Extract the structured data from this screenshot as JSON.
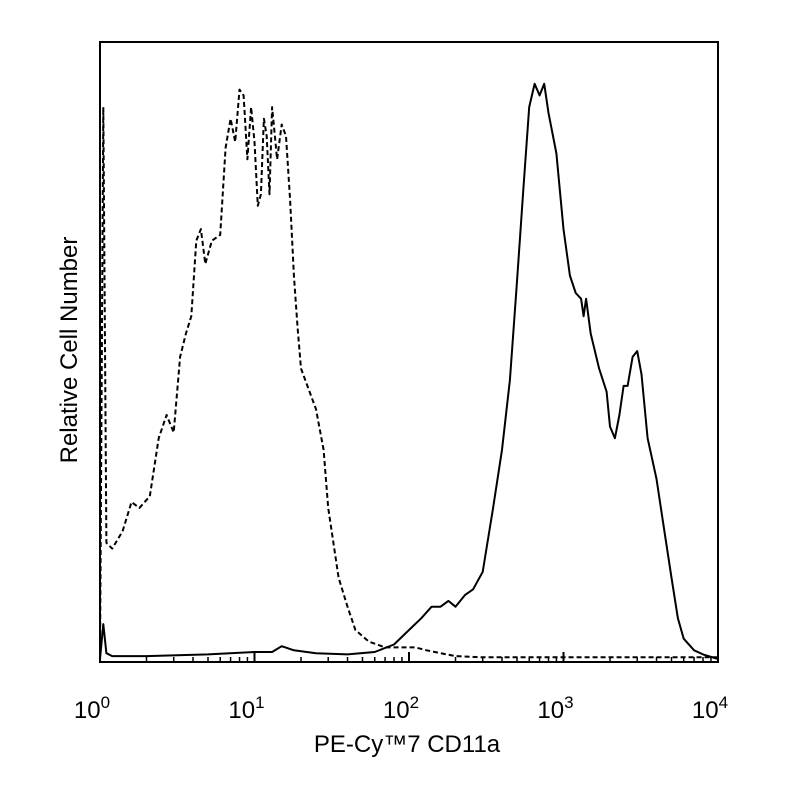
{
  "chart_data": {
    "type": "line",
    "title": "",
    "xlabel": "PE-Cy™7 CD11a",
    "ylabel": "Relative Cell Number",
    "xscale": "log",
    "xlim": [
      1,
      10000
    ],
    "ylim": [
      0,
      1
    ],
    "grid": false,
    "legend": "none",
    "x_ticks": [
      {
        "value": 1,
        "base": "10",
        "exp": "0"
      },
      {
        "value": 10,
        "base": "10",
        "exp": "1"
      },
      {
        "value": 100,
        "base": "10",
        "exp": "2"
      },
      {
        "value": 1000,
        "base": "10",
        "exp": "3"
      },
      {
        "value": 10000,
        "base": "10",
        "exp": "4"
      }
    ],
    "series": [
      {
        "style": "dashed",
        "color": "#000000",
        "points": [
          [
            1.0,
            0.0
          ],
          [
            1.05,
            0.95
          ],
          [
            1.1,
            0.2
          ],
          [
            1.2,
            0.19
          ],
          [
            1.4,
            0.22
          ],
          [
            1.6,
            0.27
          ],
          [
            1.8,
            0.26
          ],
          [
            2.1,
            0.28
          ],
          [
            2.4,
            0.38
          ],
          [
            2.7,
            0.42
          ],
          [
            3.0,
            0.39
          ],
          [
            3.3,
            0.52
          ],
          [
            3.6,
            0.56
          ],
          [
            3.9,
            0.59
          ],
          [
            4.2,
            0.72
          ],
          [
            4.5,
            0.74
          ],
          [
            4.8,
            0.68
          ],
          [
            5.3,
            0.72
          ],
          [
            6.0,
            0.73
          ],
          [
            6.5,
            0.88
          ],
          [
            7.0,
            0.93
          ],
          [
            7.5,
            0.89
          ],
          [
            8.0,
            0.98
          ],
          [
            8.5,
            0.97
          ],
          [
            9.0,
            0.86
          ],
          [
            9.5,
            0.95
          ],
          [
            10.0,
            0.89
          ],
          [
            10.5,
            0.78
          ],
          [
            11.0,
            0.8
          ],
          [
            11.5,
            0.93
          ],
          [
            12.0,
            0.9
          ],
          [
            12.5,
            0.8
          ],
          [
            13.0,
            0.95
          ],
          [
            14.0,
            0.86
          ],
          [
            15.0,
            0.92
          ],
          [
            16.0,
            0.9
          ],
          [
            17.0,
            0.79
          ],
          [
            18.0,
            0.66
          ],
          [
            19.0,
            0.57
          ],
          [
            20.0,
            0.5
          ],
          [
            22.0,
            0.47
          ],
          [
            25.0,
            0.43
          ],
          [
            28.0,
            0.36
          ],
          [
            30.0,
            0.26
          ],
          [
            35.0,
            0.14
          ],
          [
            40.0,
            0.09
          ],
          [
            45.0,
            0.05
          ],
          [
            55.0,
            0.03
          ],
          [
            70.0,
            0.02
          ],
          [
            90.0,
            0.02
          ],
          [
            110.0,
            0.02
          ],
          [
            130.0,
            0.015
          ],
          [
            160.0,
            0.01
          ],
          [
            200.0,
            0.005
          ],
          [
            300.0,
            0.003
          ],
          [
            500.0,
            0.003
          ],
          [
            1000.0,
            0.003
          ],
          [
            3000.0,
            0.003
          ],
          [
            10000.0,
            0.003
          ]
        ]
      },
      {
        "style": "solid",
        "color": "#000000",
        "points": [
          [
            1.0,
            0.0
          ],
          [
            1.05,
            0.06
          ],
          [
            1.1,
            0.01
          ],
          [
            1.2,
            0.005
          ],
          [
            2.0,
            0.005
          ],
          [
            5.0,
            0.008
          ],
          [
            10.0,
            0.012
          ],
          [
            13.0,
            0.012
          ],
          [
            15.0,
            0.022
          ],
          [
            18.0,
            0.015
          ],
          [
            25.0,
            0.01
          ],
          [
            40.0,
            0.008
          ],
          [
            60.0,
            0.012
          ],
          [
            80.0,
            0.025
          ],
          [
            100.0,
            0.05
          ],
          [
            120.0,
            0.07
          ],
          [
            140.0,
            0.09
          ],
          [
            160.0,
            0.09
          ],
          [
            180.0,
            0.1
          ],
          [
            200.0,
            0.09
          ],
          [
            230.0,
            0.11
          ],
          [
            260.0,
            0.12
          ],
          [
            300.0,
            0.15
          ],
          [
            350.0,
            0.26
          ],
          [
            400.0,
            0.36
          ],
          [
            450.0,
            0.48
          ],
          [
            500.0,
            0.65
          ],
          [
            550.0,
            0.81
          ],
          [
            600.0,
            0.95
          ],
          [
            650.0,
            0.99
          ],
          [
            700.0,
            0.97
          ],
          [
            750.0,
            0.99
          ],
          [
            800.0,
            0.94
          ],
          [
            900.0,
            0.87
          ],
          [
            1000.0,
            0.74
          ],
          [
            1100.0,
            0.66
          ],
          [
            1200.0,
            0.63
          ],
          [
            1300.0,
            0.62
          ],
          [
            1350.0,
            0.59
          ],
          [
            1400.0,
            0.62
          ],
          [
            1500.0,
            0.56
          ],
          [
            1700.0,
            0.5
          ],
          [
            1900.0,
            0.46
          ],
          [
            2000.0,
            0.4
          ],
          [
            2150.0,
            0.38
          ],
          [
            2300.0,
            0.42
          ],
          [
            2450.0,
            0.47
          ],
          [
            2600.0,
            0.47
          ],
          [
            2800.0,
            0.52
          ],
          [
            3000.0,
            0.53
          ],
          [
            3200.0,
            0.49
          ],
          [
            3500.0,
            0.38
          ],
          [
            4000.0,
            0.31
          ],
          [
            4500.0,
            0.22
          ],
          [
            5000.0,
            0.14
          ],
          [
            5500.0,
            0.07
          ],
          [
            6000.0,
            0.035
          ],
          [
            7000.0,
            0.015
          ],
          [
            8000.0,
            0.008
          ],
          [
            10000.0,
            0.0
          ]
        ]
      }
    ]
  }
}
